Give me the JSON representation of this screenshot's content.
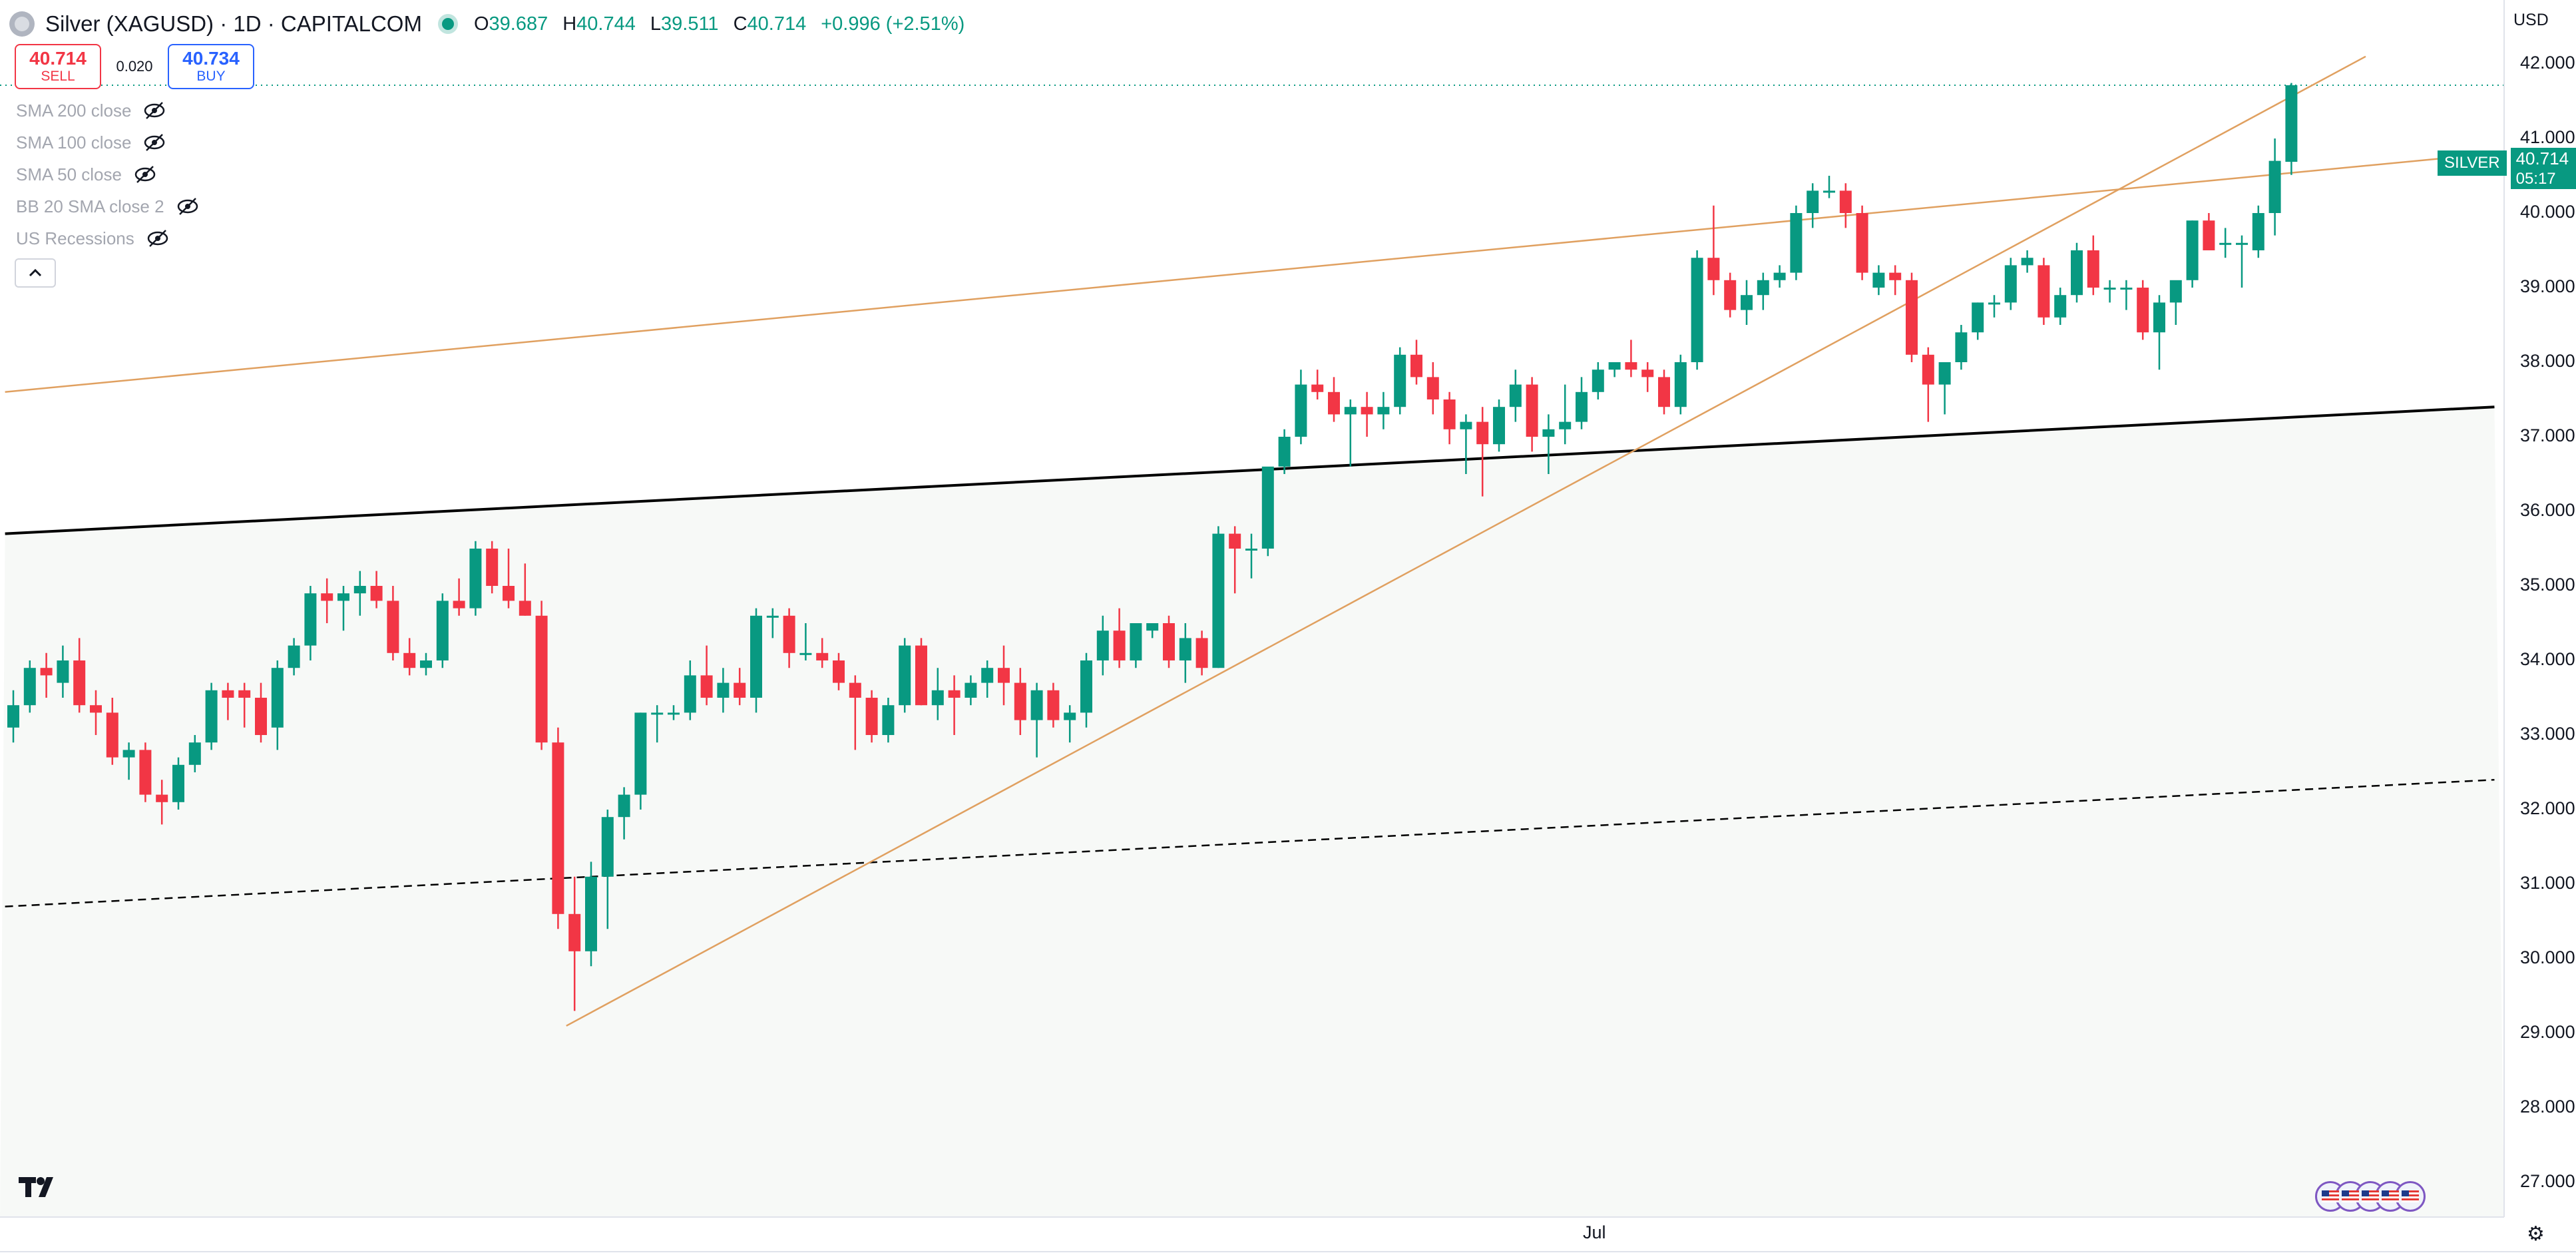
{
  "header": {
    "title": "Silver (XAGUSD) · 1D · CAPITALCOM",
    "ohlc": [
      {
        "k": "O",
        "v": "39.687"
      },
      {
        "k": "H",
        "v": "40.744"
      },
      {
        "k": "L",
        "v": "39.511"
      },
      {
        "k": "C",
        "v": "40.714"
      },
      {
        "k": "",
        "v": "+0.996 (+2.51%)"
      }
    ]
  },
  "trade": {
    "sell_price": "40.714",
    "sell_label": "SELL",
    "spread": "0.020",
    "buy_price": "40.734",
    "buy_label": "BUY"
  },
  "indicators": [
    "SMA 200 close",
    "SMA 100 close",
    "SMA 50 close",
    "BB 20 SMA close 2",
    "US Recessions"
  ],
  "price_axis": {
    "currency": "USD",
    "ticks": [
      "42.000",
      "41.000",
      "40.000",
      "39.000",
      "38.000",
      "37.000",
      "36.000",
      "35.000",
      "34.000",
      "33.000",
      "32.000",
      "31.000",
      "30.000",
      "29.000",
      "28.000",
      "27.000"
    ]
  },
  "price_tag": {
    "symbol": "SILVER",
    "price": "40.714",
    "countdown": "05:17"
  },
  "time_axis": {
    "label": "Jul"
  },
  "colors": {
    "up": "#089981",
    "down": "#f23645",
    "trendline": "#e0a060",
    "channel": "#000000"
  },
  "chart_data": {
    "type": "candlestick",
    "title": "Silver (XAGUSD) · 1D · CAPITALCOM",
    "ylim": [
      26.6,
      42.4
    ],
    "y_ticks": [
      42,
      41,
      40,
      39,
      38,
      37,
      36,
      35,
      34,
      33,
      32,
      31,
      30,
      29,
      28,
      27
    ],
    "x_ticks": [
      {
        "label": "Jul",
        "index": 96
      }
    ],
    "candles": [
      {
        "o": 32.1,
        "h": 32.6,
        "l": 31.9,
        "c": 32.4
      },
      {
        "o": 32.4,
        "h": 33.0,
        "l": 32.3,
        "c": 32.9
      },
      {
        "o": 32.9,
        "h": 33.1,
        "l": 32.5,
        "c": 32.8
      },
      {
        "o": 32.7,
        "h": 33.2,
        "l": 32.5,
        "c": 33.0
      },
      {
        "o": 33.0,
        "h": 33.3,
        "l": 32.3,
        "c": 32.4
      },
      {
        "o": 32.4,
        "h": 32.6,
        "l": 32.0,
        "c": 32.3
      },
      {
        "o": 32.3,
        "h": 32.5,
        "l": 31.6,
        "c": 31.7
      },
      {
        "o": 31.7,
        "h": 31.9,
        "l": 31.4,
        "c": 31.8
      },
      {
        "o": 31.8,
        "h": 31.9,
        "l": 31.1,
        "c": 31.2
      },
      {
        "o": 31.2,
        "h": 31.4,
        "l": 30.8,
        "c": 31.1
      },
      {
        "o": 31.1,
        "h": 31.7,
        "l": 31.0,
        "c": 31.6
      },
      {
        "o": 31.6,
        "h": 32.0,
        "l": 31.5,
        "c": 31.9
      },
      {
        "o": 31.9,
        "h": 32.7,
        "l": 31.8,
        "c": 32.6
      },
      {
        "o": 32.6,
        "h": 32.7,
        "l": 32.2,
        "c": 32.5
      },
      {
        "o": 32.6,
        "h": 32.7,
        "l": 32.1,
        "c": 32.5
      },
      {
        "o": 32.5,
        "h": 32.7,
        "l": 31.9,
        "c": 32.0
      },
      {
        "o": 32.1,
        "h": 33.0,
        "l": 31.8,
        "c": 32.9
      },
      {
        "o": 32.9,
        "h": 33.3,
        "l": 32.8,
        "c": 33.2
      },
      {
        "o": 33.2,
        "h": 34.0,
        "l": 33.0,
        "c": 33.9
      },
      {
        "o": 33.9,
        "h": 34.1,
        "l": 33.5,
        "c": 33.8
      },
      {
        "o": 33.8,
        "h": 34.0,
        "l": 33.4,
        "c": 33.9
      },
      {
        "o": 33.9,
        "h": 34.2,
        "l": 33.6,
        "c": 34.0
      },
      {
        "o": 34.0,
        "h": 34.2,
        "l": 33.7,
        "c": 33.8
      },
      {
        "o": 33.8,
        "h": 34.0,
        "l": 33.0,
        "c": 33.1
      },
      {
        "o": 33.1,
        "h": 33.3,
        "l": 32.8,
        "c": 32.9
      },
      {
        "o": 32.9,
        "h": 33.1,
        "l": 32.8,
        "c": 33.0
      },
      {
        "o": 33.0,
        "h": 33.9,
        "l": 32.9,
        "c": 33.8
      },
      {
        "o": 33.8,
        "h": 34.1,
        "l": 33.6,
        "c": 33.7
      },
      {
        "o": 33.7,
        "h": 34.6,
        "l": 33.6,
        "c": 34.5
      },
      {
        "o": 34.5,
        "h": 34.6,
        "l": 33.9,
        "c": 34.0
      },
      {
        "o": 34.0,
        "h": 34.5,
        "l": 33.7,
        "c": 33.8
      },
      {
        "o": 33.8,
        "h": 34.3,
        "l": 33.6,
        "c": 33.6
      },
      {
        "o": 33.6,
        "h": 33.8,
        "l": 31.8,
        "c": 31.9
      },
      {
        "o": 31.9,
        "h": 32.1,
        "l": 29.4,
        "c": 29.6
      },
      {
        "o": 29.6,
        "h": 30.1,
        "l": 28.3,
        "c": 29.1
      },
      {
        "o": 29.1,
        "h": 30.3,
        "l": 28.9,
        "c": 30.1
      },
      {
        "o": 30.1,
        "h": 31.0,
        "l": 29.4,
        "c": 30.9
      },
      {
        "o": 30.9,
        "h": 31.3,
        "l": 30.6,
        "c": 31.2
      },
      {
        "o": 31.2,
        "h": 32.3,
        "l": 31.0,
        "c": 32.3
      },
      {
        "o": 32.3,
        "h": 32.4,
        "l": 31.9,
        "c": 32.3
      },
      {
        "o": 32.3,
        "h": 32.4,
        "l": 32.2,
        "c": 32.3
      },
      {
        "o": 32.3,
        "h": 33.0,
        "l": 32.2,
        "c": 32.8
      },
      {
        "o": 32.8,
        "h": 33.2,
        "l": 32.4,
        "c": 32.5
      },
      {
        "o": 32.5,
        "h": 32.9,
        "l": 32.3,
        "c": 32.7
      },
      {
        "o": 32.7,
        "h": 32.9,
        "l": 32.4,
        "c": 32.5
      },
      {
        "o": 32.5,
        "h": 33.7,
        "l": 32.3,
        "c": 33.6
      },
      {
        "o": 33.6,
        "h": 33.7,
        "l": 33.3,
        "c": 33.6
      },
      {
        "o": 33.6,
        "h": 33.7,
        "l": 32.9,
        "c": 33.1
      },
      {
        "o": 33.1,
        "h": 33.5,
        "l": 33.0,
        "c": 33.1
      },
      {
        "o": 33.1,
        "h": 33.3,
        "l": 32.9,
        "c": 33.0
      },
      {
        "o": 33.0,
        "h": 33.1,
        "l": 32.6,
        "c": 32.7
      },
      {
        "o": 32.7,
        "h": 32.8,
        "l": 31.8,
        "c": 32.5
      },
      {
        "o": 32.5,
        "h": 32.6,
        "l": 31.9,
        "c": 32.0
      },
      {
        "o": 32.0,
        "h": 32.5,
        "l": 31.9,
        "c": 32.4
      },
      {
        "o": 32.4,
        "h": 33.3,
        "l": 32.3,
        "c": 33.2
      },
      {
        "o": 33.2,
        "h": 33.3,
        "l": 32.4,
        "c": 32.4
      },
      {
        "o": 32.4,
        "h": 32.9,
        "l": 32.2,
        "c": 32.6
      },
      {
        "o": 32.6,
        "h": 32.8,
        "l": 32.0,
        "c": 32.5
      },
      {
        "o": 32.5,
        "h": 32.8,
        "l": 32.4,
        "c": 32.7
      },
      {
        "o": 32.7,
        "h": 33.0,
        "l": 32.5,
        "c": 32.9
      },
      {
        "o": 32.9,
        "h": 33.2,
        "l": 32.4,
        "c": 32.7
      },
      {
        "o": 32.7,
        "h": 32.9,
        "l": 32.0,
        "c": 32.2
      },
      {
        "o": 32.2,
        "h": 32.7,
        "l": 31.7,
        "c": 32.6
      },
      {
        "o": 32.6,
        "h": 32.7,
        "l": 32.1,
        "c": 32.2
      },
      {
        "o": 32.2,
        "h": 32.4,
        "l": 31.9,
        "c": 32.3
      },
      {
        "o": 32.3,
        "h": 33.1,
        "l": 32.1,
        "c": 33.0
      },
      {
        "o": 33.0,
        "h": 33.6,
        "l": 32.8,
        "c": 33.4
      },
      {
        "o": 33.4,
        "h": 33.7,
        "l": 32.9,
        "c": 33.0
      },
      {
        "o": 33.0,
        "h": 33.5,
        "l": 32.9,
        "c": 33.5
      },
      {
        "o": 33.4,
        "h": 33.5,
        "l": 33.3,
        "c": 33.5
      },
      {
        "o": 33.5,
        "h": 33.6,
        "l": 32.9,
        "c": 33.0
      },
      {
        "o": 33.0,
        "h": 33.5,
        "l": 32.7,
        "c": 33.3
      },
      {
        "o": 33.3,
        "h": 33.4,
        "l": 32.8,
        "c": 32.9
      },
      {
        "o": 32.9,
        "h": 34.8,
        "l": 32.9,
        "c": 34.7
      },
      {
        "o": 34.7,
        "h": 34.8,
        "l": 33.9,
        "c": 34.5
      },
      {
        "o": 34.5,
        "h": 34.7,
        "l": 34.1,
        "c": 34.5
      },
      {
        "o": 34.5,
        "h": 35.5,
        "l": 34.4,
        "c": 35.6
      },
      {
        "o": 35.6,
        "h": 36.1,
        "l": 35.5,
        "c": 36.0
      },
      {
        "o": 36.0,
        "h": 36.9,
        "l": 35.9,
        "c": 36.7
      },
      {
        "o": 36.7,
        "h": 36.9,
        "l": 36.5,
        "c": 36.6
      },
      {
        "o": 36.6,
        "h": 36.8,
        "l": 36.2,
        "c": 36.3
      },
      {
        "o": 36.3,
        "h": 36.5,
        "l": 35.6,
        "c": 36.4
      },
      {
        "o": 36.4,
        "h": 36.6,
        "l": 36.0,
        "c": 36.3
      },
      {
        "o": 36.3,
        "h": 36.6,
        "l": 36.1,
        "c": 36.4
      },
      {
        "o": 36.4,
        "h": 37.2,
        "l": 36.3,
        "c": 37.1
      },
      {
        "o": 37.1,
        "h": 37.3,
        "l": 36.7,
        "c": 36.8
      },
      {
        "o": 36.8,
        "h": 37.0,
        "l": 36.3,
        "c": 36.5
      },
      {
        "o": 36.5,
        "h": 36.6,
        "l": 35.9,
        "c": 36.1
      },
      {
        "o": 36.1,
        "h": 36.3,
        "l": 35.5,
        "c": 36.2
      },
      {
        "o": 36.2,
        "h": 36.4,
        "l": 35.2,
        "c": 35.9
      },
      {
        "o": 35.9,
        "h": 36.5,
        "l": 35.8,
        "c": 36.4
      },
      {
        "o": 36.4,
        "h": 36.9,
        "l": 36.2,
        "c": 36.7
      },
      {
        "o": 36.7,
        "h": 36.8,
        "l": 35.8,
        "c": 36.0
      },
      {
        "o": 36.0,
        "h": 36.3,
        "l": 35.5,
        "c": 36.1
      },
      {
        "o": 36.1,
        "h": 36.7,
        "l": 35.9,
        "c": 36.2
      },
      {
        "o": 36.2,
        "h": 36.8,
        "l": 36.1,
        "c": 36.6
      },
      {
        "o": 36.6,
        "h": 37.0,
        "l": 36.5,
        "c": 36.9
      },
      {
        "o": 36.9,
        "h": 37.0,
        "l": 36.8,
        "c": 37.0
      },
      {
        "o": 37.0,
        "h": 37.3,
        "l": 36.8,
        "c": 36.9
      },
      {
        "o": 36.9,
        "h": 37.0,
        "l": 36.6,
        "c": 36.8
      },
      {
        "o": 36.8,
        "h": 36.9,
        "l": 36.3,
        "c": 36.4
      },
      {
        "o": 36.4,
        "h": 37.1,
        "l": 36.3,
        "c": 37.0
      },
      {
        "o": 37.0,
        "h": 38.5,
        "l": 36.9,
        "c": 38.4
      },
      {
        "o": 38.4,
        "h": 39.1,
        "l": 37.9,
        "c": 38.1
      },
      {
        "o": 38.1,
        "h": 38.2,
        "l": 37.6,
        "c": 37.7
      },
      {
        "o": 37.7,
        "h": 38.1,
        "l": 37.5,
        "c": 37.9
      },
      {
        "o": 37.9,
        "h": 38.2,
        "l": 37.7,
        "c": 38.1
      },
      {
        "o": 38.1,
        "h": 38.3,
        "l": 38.0,
        "c": 38.2
      },
      {
        "o": 38.2,
        "h": 39.1,
        "l": 38.1,
        "c": 39.0
      },
      {
        "o": 39.0,
        "h": 39.4,
        "l": 38.8,
        "c": 39.3
      },
      {
        "o": 39.3,
        "h": 39.5,
        "l": 39.2,
        "c": 39.3
      },
      {
        "o": 39.3,
        "h": 39.4,
        "l": 38.8,
        "c": 39.0
      },
      {
        "o": 39.0,
        "h": 39.1,
        "l": 38.1,
        "c": 38.2
      },
      {
        "o": 38.0,
        "h": 38.3,
        "l": 37.9,
        "c": 38.2
      },
      {
        "o": 38.2,
        "h": 38.3,
        "l": 37.9,
        "c": 38.1
      },
      {
        "o": 38.1,
        "h": 38.2,
        "l": 37.0,
        "c": 37.1
      },
      {
        "o": 37.1,
        "h": 37.2,
        "l": 36.2,
        "c": 36.7
      },
      {
        "o": 36.7,
        "h": 37.0,
        "l": 36.3,
        "c": 37.0
      },
      {
        "o": 37.0,
        "h": 37.5,
        "l": 36.9,
        "c": 37.4
      },
      {
        "o": 37.4,
        "h": 37.8,
        "l": 37.3,
        "c": 37.8
      },
      {
        "o": 37.8,
        "h": 37.9,
        "l": 37.6,
        "c": 37.8
      },
      {
        "o": 37.8,
        "h": 38.4,
        "l": 37.7,
        "c": 38.3
      },
      {
        "o": 38.3,
        "h": 38.5,
        "l": 38.2,
        "c": 38.4
      },
      {
        "o": 38.3,
        "h": 38.4,
        "l": 37.5,
        "c": 37.6
      },
      {
        "o": 37.6,
        "h": 38.0,
        "l": 37.5,
        "c": 37.9
      },
      {
        "o": 37.9,
        "h": 38.6,
        "l": 37.8,
        "c": 38.5
      },
      {
        "o": 38.5,
        "h": 38.7,
        "l": 37.9,
        "c": 38.0
      },
      {
        "o": 38.0,
        "h": 38.1,
        "l": 37.8,
        "c": 38.0
      },
      {
        "o": 38.0,
        "h": 38.1,
        "l": 37.7,
        "c": 38.0
      },
      {
        "o": 38.0,
        "h": 38.1,
        "l": 37.3,
        "c": 37.4
      },
      {
        "o": 37.4,
        "h": 37.9,
        "l": 36.9,
        "c": 37.8
      },
      {
        "o": 37.8,
        "h": 38.0,
        "l": 37.5,
        "c": 38.1
      },
      {
        "o": 38.1,
        "h": 38.9,
        "l": 38.0,
        "c": 38.9
      },
      {
        "o": 38.9,
        "h": 39.0,
        "l": 38.5,
        "c": 38.5
      },
      {
        "o": 38.6,
        "h": 38.8,
        "l": 38.4,
        "c": 38.6
      },
      {
        "o": 38.6,
        "h": 38.7,
        "l": 38.0,
        "c": 38.6
      },
      {
        "o": 38.5,
        "h": 39.1,
        "l": 38.4,
        "c": 39.0
      },
      {
        "o": 39.0,
        "h": 40.0,
        "l": 38.7,
        "c": 39.7
      },
      {
        "o": 39.687,
        "h": 40.744,
        "l": 39.511,
        "c": 40.714
      }
    ],
    "trendlines": [
      {
        "style": "solid",
        "color": "#000000",
        "from": {
          "index": -0.5,
          "value": 34.7
        },
        "to": {
          "index": 150.3,
          "value": 36.4
        }
      },
      {
        "style": "dashed",
        "color": "#000000",
        "from": {
          "index": -0.5,
          "value": 29.7
        },
        "to": {
          "index": 150.3,
          "value": 31.4
        }
      },
      {
        "style": "solid",
        "color": "#e0a060",
        "from": {
          "index": -0.5,
          "value": 36.6
        },
        "to": {
          "index": 150.3,
          "value": 39.8
        }
      },
      {
        "style": "solid",
        "color": "#e0a060",
        "from": {
          "index": 33.5,
          "value": 28.1
        },
        "to": {
          "index": 142.5,
          "value": 41.1
        }
      }
    ],
    "last_price": 40.714
  }
}
